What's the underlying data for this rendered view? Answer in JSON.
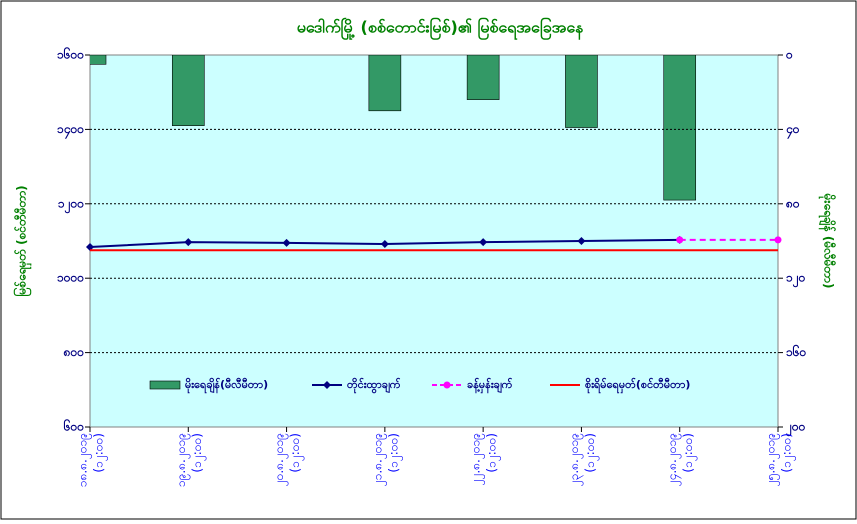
{
  "chart_data": {
    "type": "bar-line",
    "title": "မဒေါက်မြို့ (စစ်တောင်းမြစ်)၏ မြစ်ရေအခြေအနေ",
    "ylabel": "မြစ်ရေမှတ် (စင်တီမီတာ)",
    "y2label": "မိုးရေချိန် (မီလီမီတာ)",
    "categories": [
      "၁၈.၈.၂၀၁၉",
      "၁၉.၈.၂၀၁၉",
      "၂၀.၈.၂၀၁၉",
      "၂၁.၈.၂၀၁၉",
      "၂၂.၈.၂၀၁၉",
      "၂၃.၈.၂၀၁၉",
      "၂၄.၈.၂၀၁၉",
      "၂၅.၈.၂၀၁၉"
    ],
    "x_times": [
      "(၁၂:၀၀)",
      "(၁၂:၀၀)",
      "(၁၂:၀၀)",
      "(၁၂:၀၀)",
      "(၁၂:၀၀)",
      "(၁၂:၀၀)",
      "(၁၂:၀၀)",
      "(၁၂:၀၀)"
    ],
    "ylim": [
      600,
      1600
    ],
    "yticks": [
      {
        "value": 600,
        "label": "၆၀၀"
      },
      {
        "value": 800,
        "label": "၈၀၀"
      },
      {
        "value": 1000,
        "label": "၁၀၀၀"
      },
      {
        "value": 1200,
        "label": "၁၂၀၀"
      },
      {
        "value": 1400,
        "label": "၁၄၀၀"
      },
      {
        "value": 1600,
        "label": "၁၆၀၀"
      }
    ],
    "y2lim": [
      200,
      0
    ],
    "y2ticks": [
      {
        "value": 0,
        "label": "၀"
      },
      {
        "value": 40,
        "label": "၄၀"
      },
      {
        "value": 80,
        "label": "၈၀"
      },
      {
        "value": 120,
        "label": "၁၂၀"
      },
      {
        "value": 160,
        "label": "၁၆၀"
      },
      {
        "value": 200,
        "label": "၂၀၀"
      }
    ],
    "grid": true,
    "series": [
      {
        "name": "မိုးရေချိန်(မီလီမီတာ)",
        "type": "bar",
        "axis": "y2",
        "color": "#339966",
        "values": [
          5,
          38,
          0,
          30,
          24,
          39,
          78,
          0
        ]
      },
      {
        "name": "တိုင်းထွာချက်",
        "type": "line",
        "marker": "diamond",
        "color": "#000080",
        "values": [
          1084,
          1097,
          1095,
          1092,
          1097,
          1100,
          1103,
          null
        ]
      },
      {
        "name": "ခန့်မှန်းချက်",
        "type": "line",
        "marker": "circle",
        "dashed": true,
        "color": "#ff00ff",
        "values": [
          null,
          null,
          null,
          null,
          null,
          null,
          1103,
          1103
        ]
      },
      {
        "name": "စိုးရိမ်ရေမှတ်(စင်တီမီတာ)",
        "type": "line",
        "color": "#ff0000",
        "values": [
          1075,
          1075,
          1075,
          1075,
          1075,
          1075,
          1075,
          1075
        ]
      }
    ]
  }
}
